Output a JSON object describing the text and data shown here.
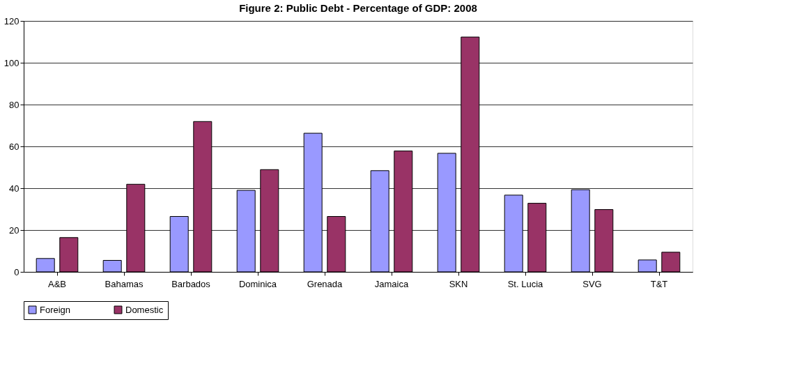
{
  "chart_data": {
    "type": "bar",
    "title": "Figure 2: Public Debt - Percentage of GDP: 2008",
    "categories": [
      "A&B",
      "Bahamas",
      "Barbados",
      "Dominica",
      "Grenada",
      "Jamaica",
      "SKN",
      "St. Lucia",
      "SVG",
      "T&T"
    ],
    "series": [
      {
        "name": "Foreign",
        "color": "#9999ff",
        "values": [
          6.4,
          5.5,
          26.5,
          39,
          66.3,
          48.4,
          56.7,
          36.7,
          39.3,
          5.7
        ]
      },
      {
        "name": "Domestic",
        "color": "#993366",
        "values": [
          16.4,
          41.9,
          71.9,
          48.9,
          26.5,
          57.8,
          112.3,
          32.8,
          29.8,
          9.4
        ]
      }
    ],
    "ylim": [
      0,
      120
    ],
    "yticks": [
      0,
      20,
      40,
      60,
      80,
      100,
      120
    ],
    "grid": "y",
    "legend": "bottom"
  }
}
